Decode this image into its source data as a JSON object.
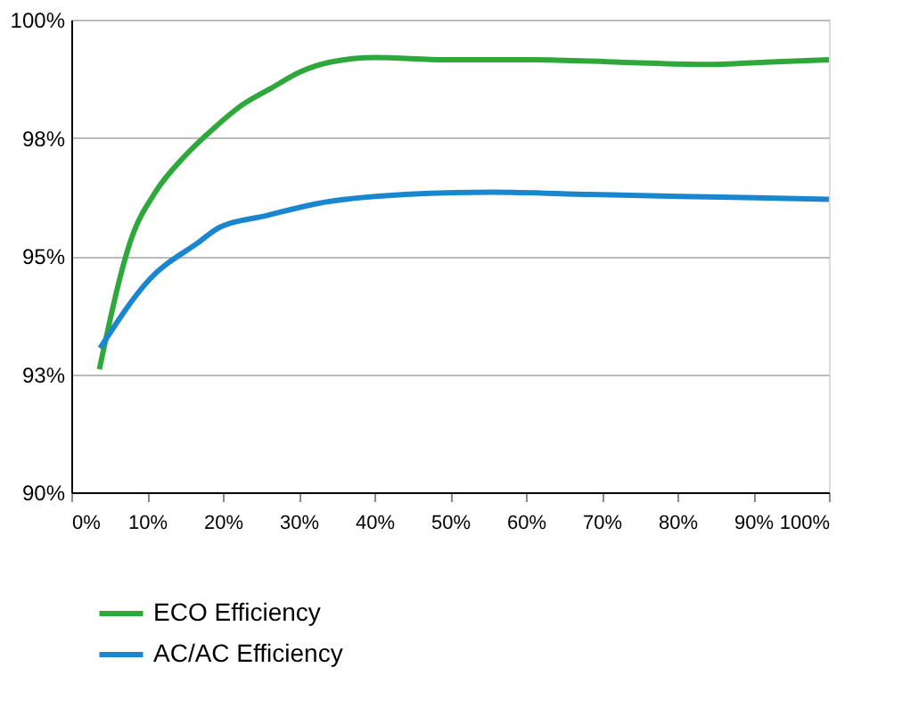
{
  "chart_data": {
    "type": "line",
    "xlim": [
      0,
      100
    ],
    "xticks": [
      {
        "value": 0,
        "label": "0%"
      },
      {
        "value": 10,
        "label": "10%"
      },
      {
        "value": 20,
        "label": "20%"
      },
      {
        "value": 30,
        "label": "30%"
      },
      {
        "value": 40,
        "label": "40%"
      },
      {
        "value": 50,
        "label": "50%"
      },
      {
        "value": 60,
        "label": "60%"
      },
      {
        "value": 70,
        "label": "70%"
      },
      {
        "value": 80,
        "label": "80%"
      },
      {
        "value": 90,
        "label": "90%"
      },
      {
        "value": 100,
        "label": "100%"
      }
    ],
    "ylim": [
      90,
      100
    ],
    "yticks": [
      {
        "value": 90,
        "label": "90%"
      },
      {
        "value": 92.5,
        "label": "93%"
      },
      {
        "value": 95,
        "label": "95%"
      },
      {
        "value": 97.5,
        "label": "98%"
      },
      {
        "value": 100,
        "label": "100%"
      }
    ],
    "grid": "y",
    "legend": "bottom",
    "marker": "none",
    "line_style": "solid",
    "series": [
      {
        "name": "ECO Efficiency",
        "color": "#2ea83a",
        "x": [
          3.7,
          8.0,
          11.1,
          14.9,
          18.8,
          22.6,
          26.4,
          30.3,
          34.1,
          40.2,
          49.4,
          60.9,
          72.4,
          83.9,
          91.6,
          100
        ],
        "values": [
          92.6,
          95.4,
          96.35,
          97.1,
          97.7,
          98.2,
          98.55,
          98.9,
          99.1,
          99.2,
          99.15,
          99.15,
          99.1,
          99.05,
          99.1,
          99.15
        ]
      },
      {
        "name": "AC/AC Efficiency",
        "color": "#1a86d0",
        "x": [
          3.8,
          10.3,
          16.9,
          19.5,
          25.7,
          32.2,
          44.1,
          55.6,
          68.6,
          83.9,
          100
        ],
        "values": [
          93.05,
          94.5,
          95.3,
          95.6,
          95.85,
          96.1,
          96.3,
          96.35,
          96.3,
          96.25,
          96.2
        ]
      }
    ]
  }
}
